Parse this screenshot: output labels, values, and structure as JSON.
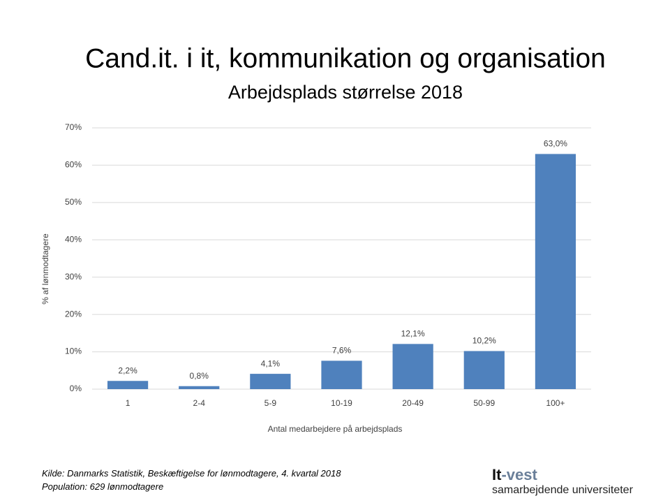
{
  "chart_data": {
    "type": "bar",
    "title": "Cand.it. i it, kommunikation og organisation",
    "subtitle": "Arbejdsplads størrelse 2018",
    "x_label": "Antal medarbejdere på arbejdsplads",
    "y_label": "% af lønmodtagere",
    "categories": [
      "1",
      "2-4",
      "5-9",
      "10-19",
      "20-49",
      "50-99",
      "100+"
    ],
    "values": [
      2.2,
      0.8,
      4.1,
      7.6,
      12.1,
      10.2,
      63.0
    ],
    "value_labels": [
      "2,2%",
      "0,8%",
      "4,1%",
      "7,6%",
      "12,1%",
      "10,2%",
      "63,0%"
    ],
    "color": "#4f81bd",
    "ylim": [
      0,
      70
    ],
    "yticks": [
      {
        "value": 0,
        "label": "0%"
      },
      {
        "value": 10,
        "label": "10%"
      },
      {
        "value": 20,
        "label": "20%"
      },
      {
        "value": 30,
        "label": "30%"
      },
      {
        "value": 40,
        "label": "40%"
      },
      {
        "value": 50,
        "label": "50%"
      },
      {
        "value": 60,
        "label": "60%"
      },
      {
        "value": 70,
        "label": "70%"
      }
    ],
    "grid": true
  },
  "footer": {
    "source": "Kilde: Danmarks Statistik, Beskæftigelse for lønmodtagere, 4. kvartal 2018",
    "population": "Population: 629 lønmodtagere"
  },
  "logo": {
    "name_parts": [
      "It",
      "-vest"
    ],
    "tagline": "samarbejdende universiteter"
  }
}
